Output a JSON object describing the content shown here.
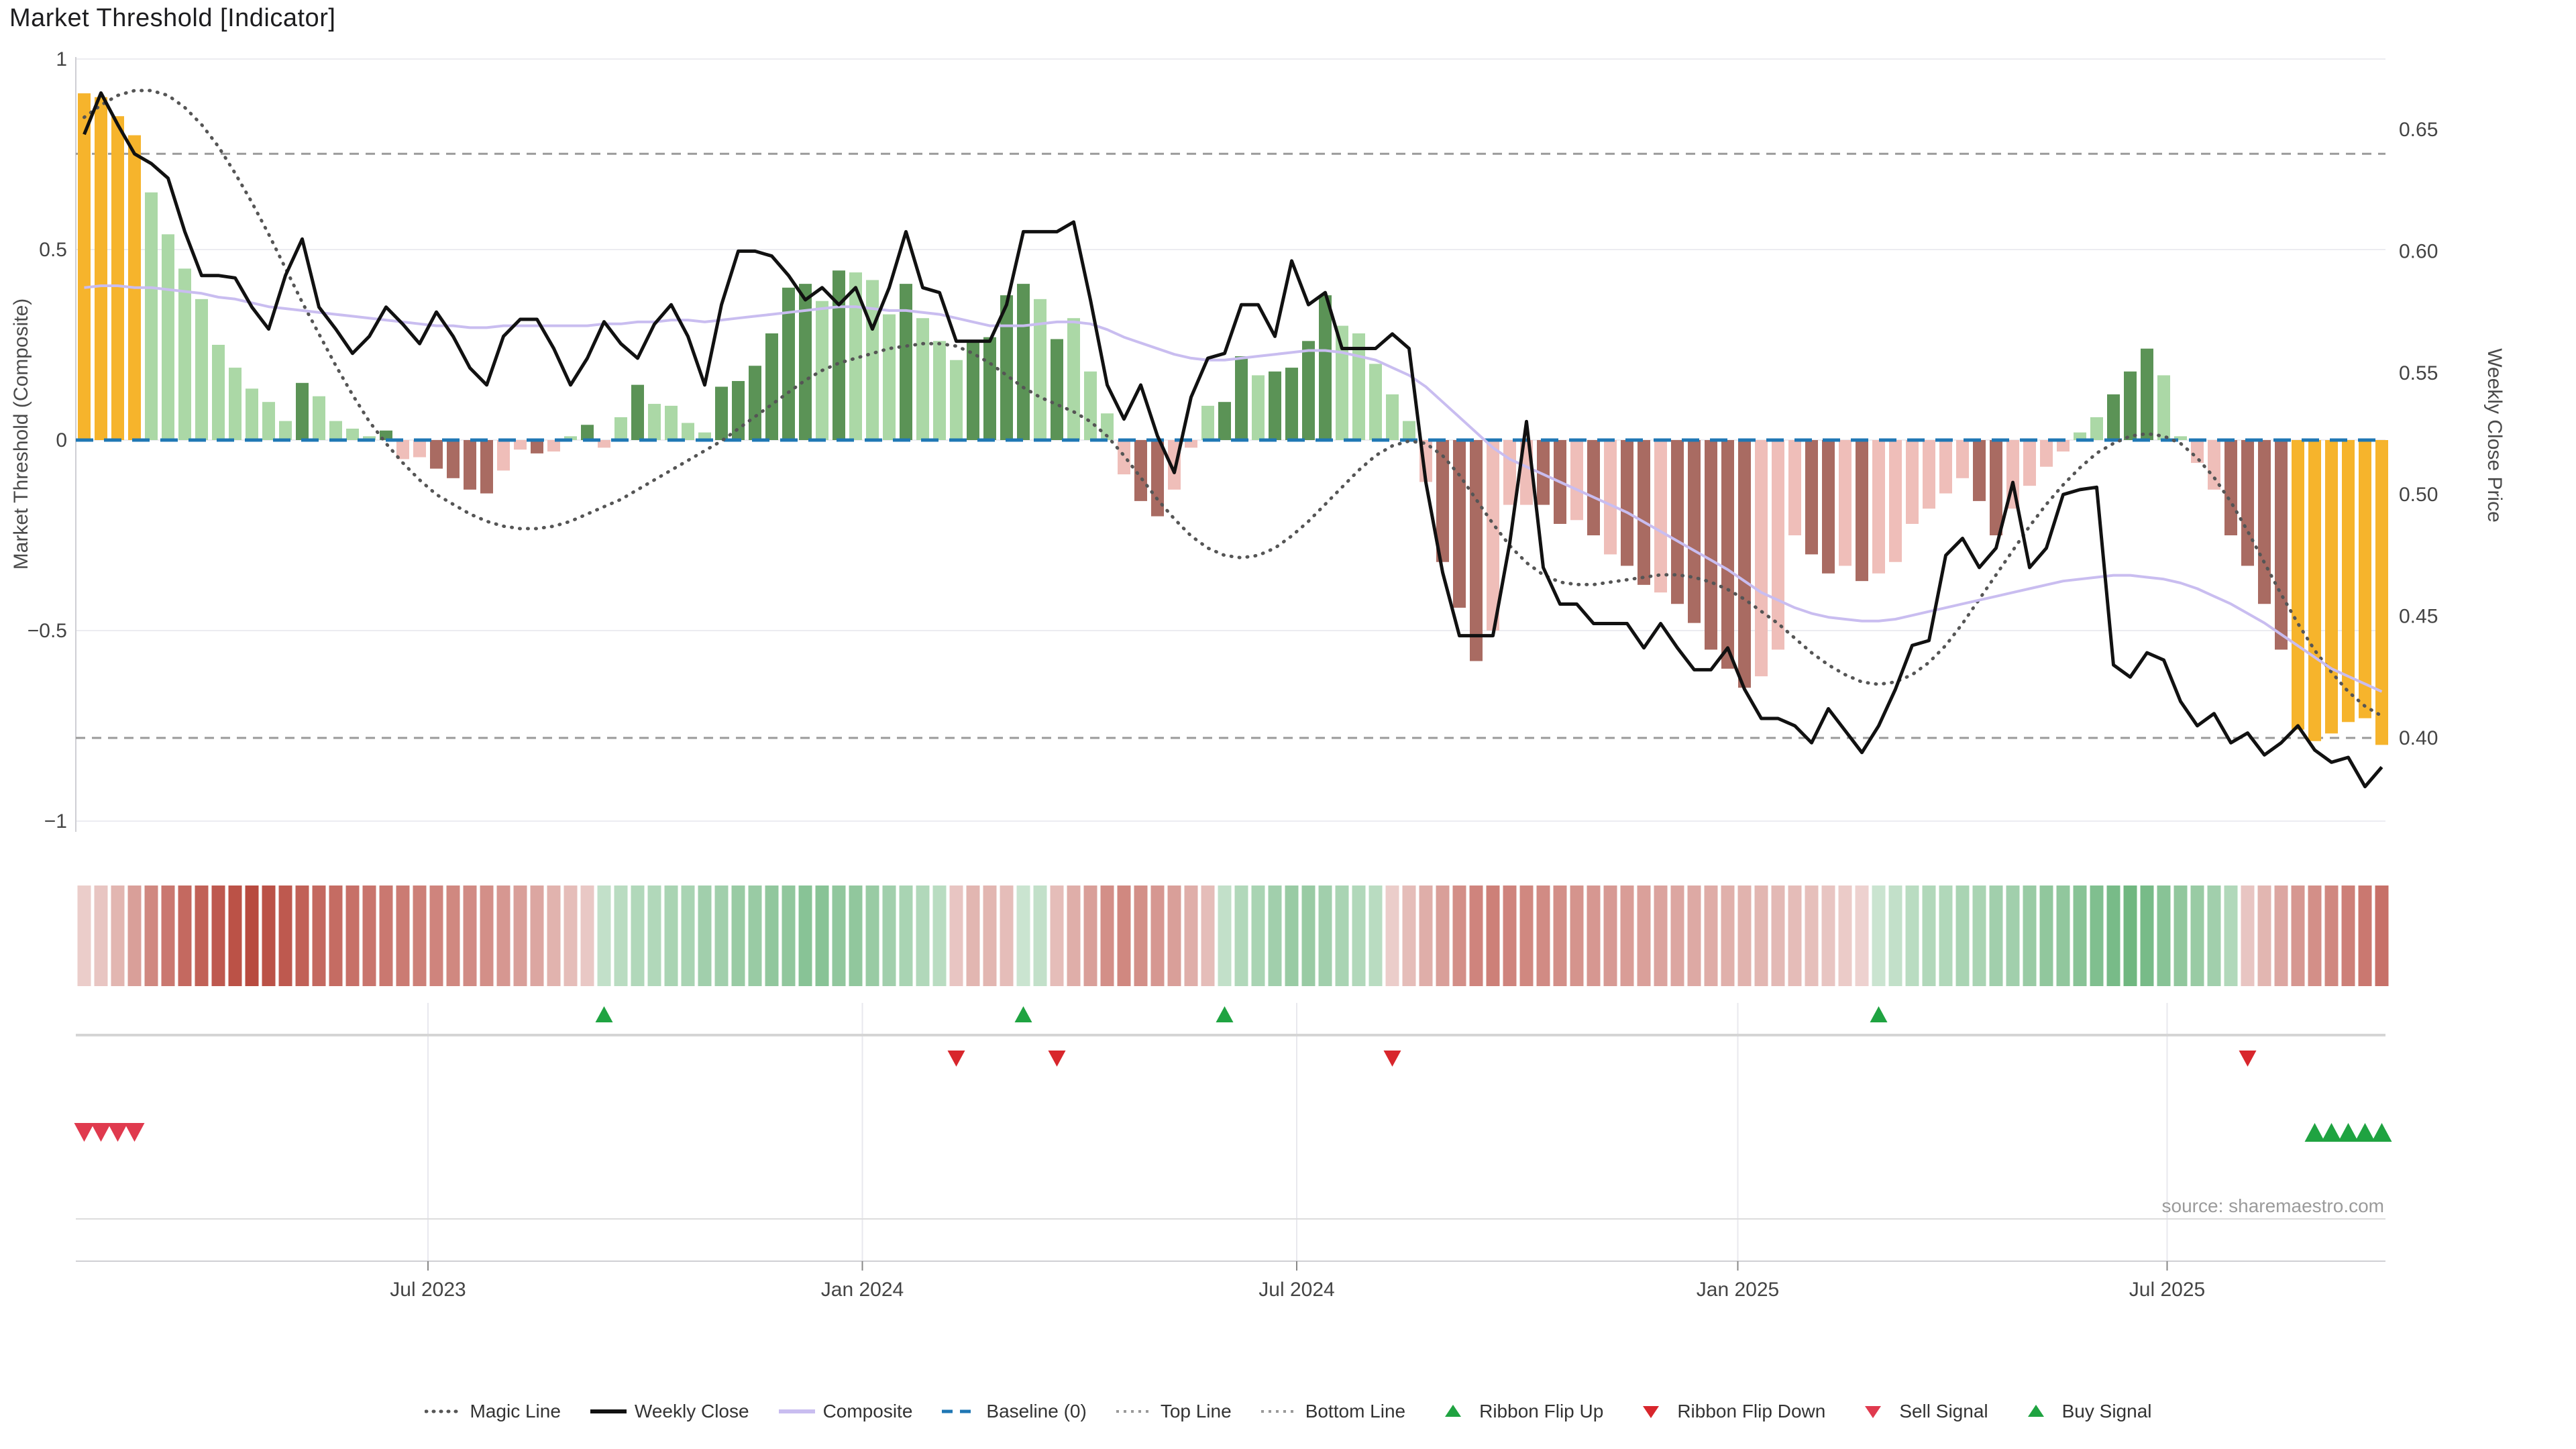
{
  "title": "Market Threshold [Indicator]",
  "source_note": "source: sharemaestro.com",
  "axes": {
    "left_title": "Market Threshold (Composite)",
    "right_title": "Weekly Close Price"
  },
  "legend": {
    "items": [
      {
        "label": "Magic Line",
        "marker": "dotted-line",
        "color": "#555555"
      },
      {
        "label": "Weekly Close",
        "marker": "solid-line",
        "color": "#111111"
      },
      {
        "label": "Composite",
        "marker": "solid-line",
        "color": "#c9bdf0"
      },
      {
        "label": "Baseline (0)",
        "marker": "dashed-line",
        "color": "#1f77b4"
      },
      {
        "label": "Top Line",
        "marker": "fine-dashed-line",
        "color": "#999999"
      },
      {
        "label": "Bottom Line",
        "marker": "fine-dashed-line",
        "color": "#999999"
      },
      {
        "label": "Ribbon Flip Up",
        "marker": "triangle-up",
        "color": "#1fa341"
      },
      {
        "label": "Ribbon Flip Down",
        "marker": "triangle-down",
        "color": "#d8262c"
      },
      {
        "label": "Sell Signal",
        "marker": "triangle-down",
        "color": "#e03a4e"
      },
      {
        "label": "Buy Signal",
        "marker": "triangle-up",
        "color": "#1fa341"
      }
    ]
  },
  "style": {
    "bar_colors": {
      "gold": "#f6b42c",
      "light_green": "#abd8a6",
      "dark_green": "#5b9356",
      "light_red": "#efbeb9",
      "dark_red": "#a96b62"
    },
    "weekly_close_color": "#111111",
    "composite_color": "#c9bdf0",
    "magic_line_color": "#555555",
    "baseline_color": "#1f77b4",
    "threshold_line_color": "#9a9a9a",
    "ribbon_red": "#b84a3f",
    "ribbon_green": "#3f9e55",
    "flip_up_color": "#1fa341",
    "flip_down_color": "#d8262c",
    "sell_color": "#e03a4e",
    "buy_color": "#1fa341",
    "grid_color": "#ececf1",
    "axis_color": "#cfcfd4",
    "tick_text_color": "#444444"
  },
  "chart_data": {
    "type": "bar",
    "description": "Weekly market-threshold composite bars (left axis) with weekly close price, magic line, top/bottom price lines (right axis), color ribbon and trade signals.",
    "n_points": 138,
    "x_axis": {
      "tick_labels": [
        "Jul 2023",
        "Jan 2024",
        "Jul 2024",
        "Jan 2025",
        "Jul 2025"
      ],
      "tick_bar_index": [
        20.5,
        46.4,
        72.3,
        98.6,
        124.2
      ],
      "frequency": "weekly"
    },
    "left_axis": {
      "label": "Market Threshold (Composite)",
      "tick_labels": [
        "1",
        "0.5",
        "0",
        "−0.5",
        "−1"
      ],
      "tick_values": [
        1,
        0.5,
        0,
        -0.5,
        -1
      ],
      "range": [
        -1.03,
        1.01
      ]
    },
    "right_axis": {
      "label": "Weekly Close Price",
      "tick_labels": [
        "0.65",
        "0.60",
        "0.55",
        "0.50",
        "0.45",
        "0.40"
      ],
      "tick_values": [
        0.65,
        0.6,
        0.55,
        0.5,
        0.45,
        0.4
      ],
      "range": [
        0.361,
        0.68
      ]
    },
    "baseline": 0,
    "top_line": 0.64,
    "bottom_line": 0.4,
    "bars": {
      "color_key": {
        "G": "gold",
        "g": "light_green",
        "D": "dark_green",
        "p": "light_red",
        "r": "dark_red"
      },
      "color_codes": "GGGGgggggggggDggggDpprrrrpprpgDpgDggggDDDDDDgDgggDgggDDDDgDgggprrppgDDgDDDDgggggprrrppprrprprrprrrrrppprrprpppppprrppppggDDDggpprrrrGGGGGG",
      "values": [
        0.91,
        0.9,
        0.85,
        0.8,
        0.65,
        0.54,
        0.45,
        0.37,
        0.25,
        0.19,
        0.135,
        0.1,
        0.05,
        0.15,
        0.115,
        0.05,
        0.03,
        0.01,
        0.025,
        -0.05,
        -0.045,
        -0.075,
        -0.1,
        -0.13,
        -0.14,
        -0.08,
        -0.025,
        -0.035,
        -0.03,
        0.01,
        0.04,
        -0.02,
        0.06,
        0.145,
        0.095,
        0.09,
        0.045,
        0.02,
        0.14,
        0.155,
        0.195,
        0.28,
        0.4,
        0.41,
        0.365,
        0.445,
        0.44,
        0.42,
        0.33,
        0.41,
        0.32,
        0.26,
        0.21,
        0.26,
        0.27,
        0.38,
        0.41,
        0.37,
        0.265,
        0.32,
        0.18,
        0.07,
        -0.09,
        -0.16,
        -0.2,
        -0.13,
        -0.02,
        0.09,
        0.1,
        0.22,
        0.17,
        0.18,
        0.19,
        0.26,
        0.38,
        0.3,
        0.28,
        0.2,
        0.12,
        0.05,
        -0.11,
        -0.32,
        -0.44,
        -0.58,
        -0.5,
        -0.17,
        -0.17,
        -0.17,
        -0.22,
        -0.21,
        -0.25,
        -0.3,
        -0.33,
        -0.38,
        -0.4,
        -0.43,
        -0.48,
        -0.55,
        -0.6,
        -0.65,
        -0.62,
        -0.55,
        -0.25,
        -0.3,
        -0.35,
        -0.33,
        -0.37,
        -0.35,
        -0.32,
        -0.22,
        -0.18,
        -0.14,
        -0.1,
        -0.16,
        -0.25,
        -0.18,
        -0.12,
        -0.07,
        -0.03,
        0.02,
        0.06,
        0.12,
        0.18,
        0.24,
        0.17,
        0.01,
        -0.06,
        -0.13,
        -0.25,
        -0.33,
        -0.43,
        -0.55,
        -0.76,
        -0.79,
        -0.77,
        -0.74,
        -0.73,
        -0.8
      ]
    },
    "weekly_close": [
      0.648,
      0.665,
      0.652,
      0.64,
      0.636,
      0.63,
      0.608,
      0.59,
      0.59,
      0.589,
      0.577,
      0.568,
      0.59,
      0.605,
      0.577,
      0.568,
      0.558,
      0.565,
      0.577,
      0.57,
      0.562,
      0.575,
      0.565,
      0.552,
      0.545,
      0.565,
      0.572,
      0.572,
      0.56,
      0.545,
      0.556,
      0.571,
      0.562,
      0.556,
      0.57,
      0.578,
      0.565,
      0.545,
      0.578,
      0.6,
      0.6,
      0.598,
      0.59,
      0.58,
      0.585,
      0.578,
      0.585,
      0.568,
      0.585,
      0.608,
      0.585,
      0.583,
      0.563,
      0.563,
      0.563,
      0.578,
      0.608,
      0.608,
      0.608,
      0.612,
      0.58,
      0.545,
      0.531,
      0.545,
      0.524,
      0.509,
      0.54,
      0.556,
      0.558,
      0.578,
      0.578,
      0.565,
      0.596,
      0.578,
      0.583,
      0.56,
      0.56,
      0.56,
      0.566,
      0.56,
      0.505,
      0.468,
      0.442,
      0.442,
      0.442,
      0.48,
      0.53,
      0.47,
      0.455,
      0.455,
      0.447,
      0.447,
      0.447,
      0.437,
      0.447,
      0.437,
      0.428,
      0.428,
      0.437,
      0.42,
      0.408,
      0.408,
      0.405,
      0.398,
      0.412,
      0.403,
      0.394,
      0.405,
      0.42,
      0.438,
      0.44,
      0.475,
      0.482,
      0.47,
      0.478,
      0.505,
      0.47,
      0.478,
      0.5,
      0.502,
      0.503,
      0.43,
      0.425,
      0.435,
      0.432,
      0.415,
      0.405,
      0.41,
      0.398,
      0.402,
      0.393,
      0.398,
      0.405,
      0.395,
      0.39,
      0.392,
      0.38,
      0.388
    ],
    "composite": [
      0.4,
      0.405,
      0.405,
      0.4,
      0.4,
      0.395,
      0.39,
      0.385,
      0.375,
      0.37,
      0.36,
      0.35,
      0.345,
      0.34,
      0.335,
      0.33,
      0.325,
      0.32,
      0.315,
      0.31,
      0.305,
      0.3,
      0.3,
      0.295,
      0.295,
      0.3,
      0.3,
      0.3,
      0.3,
      0.3,
      0.3,
      0.305,
      0.305,
      0.31,
      0.31,
      0.315,
      0.315,
      0.31,
      0.315,
      0.32,
      0.325,
      0.33,
      0.335,
      0.34,
      0.345,
      0.35,
      0.35,
      0.345,
      0.34,
      0.34,
      0.335,
      0.33,
      0.32,
      0.31,
      0.3,
      0.3,
      0.3,
      0.305,
      0.31,
      0.31,
      0.305,
      0.29,
      0.27,
      0.255,
      0.24,
      0.225,
      0.215,
      0.21,
      0.21,
      0.215,
      0.22,
      0.225,
      0.23,
      0.235,
      0.235,
      0.23,
      0.22,
      0.21,
      0.19,
      0.17,
      0.14,
      0.1,
      0.06,
      0.02,
      -0.02,
      -0.05,
      -0.07,
      -0.09,
      -0.11,
      -0.13,
      -0.15,
      -0.17,
      -0.19,
      -0.215,
      -0.24,
      -0.265,
      -0.29,
      -0.315,
      -0.34,
      -0.37,
      -0.4,
      -0.42,
      -0.44,
      -0.455,
      -0.465,
      -0.47,
      -0.475,
      -0.475,
      -0.47,
      -0.46,
      -0.45,
      -0.44,
      -0.43,
      -0.42,
      -0.41,
      -0.4,
      -0.39,
      -0.38,
      -0.37,
      -0.365,
      -0.36,
      -0.355,
      -0.355,
      -0.36,
      -0.365,
      -0.375,
      -0.39,
      -0.41,
      -0.43,
      -0.455,
      -0.48,
      -0.51,
      -0.54,
      -0.57,
      -0.6,
      -0.62,
      -0.64,
      -0.66
    ],
    "magic_line": [
      0.655,
      0.66,
      0.664,
      0.666,
      0.666,
      0.664,
      0.659,
      0.652,
      0.643,
      0.632,
      0.62,
      0.607,
      0.593,
      0.579,
      0.566,
      0.553,
      0.541,
      0.53,
      0.521,
      0.513,
      0.506,
      0.5,
      0.496,
      0.492,
      0.489,
      0.487,
      0.486,
      0.486,
      0.487,
      0.489,
      0.492,
      0.495,
      0.498,
      0.502,
      0.506,
      0.51,
      0.514,
      0.518,
      0.522,
      0.527,
      0.532,
      0.537,
      0.542,
      0.547,
      0.551,
      0.554,
      0.556,
      0.558,
      0.56,
      0.561,
      0.562,
      0.562,
      0.561,
      0.558,
      0.554,
      0.549,
      0.544,
      0.54,
      0.537,
      0.534,
      0.53,
      0.524,
      0.516,
      0.507,
      0.498,
      0.49,
      0.483,
      0.478,
      0.475,
      0.474,
      0.475,
      0.478,
      0.483,
      0.489,
      0.496,
      0.503,
      0.51,
      0.516,
      0.52,
      0.522,
      0.521,
      0.516,
      0.508,
      0.498,
      0.488,
      0.479,
      0.472,
      0.467,
      0.464,
      0.463,
      0.463,
      0.464,
      0.465,
      0.466,
      0.467,
      0.467,
      0.466,
      0.464,
      0.461,
      0.457,
      0.452,
      0.447,
      0.441,
      0.435,
      0.43,
      0.426,
      0.423,
      0.422,
      0.423,
      0.426,
      0.431,
      0.438,
      0.447,
      0.457,
      0.467,
      0.477,
      0.487,
      0.496,
      0.504,
      0.511,
      0.517,
      0.521,
      0.524,
      0.525,
      0.524,
      0.521,
      0.515,
      0.507,
      0.497,
      0.485,
      0.472,
      0.459,
      0.447,
      0.436,
      0.427,
      0.419,
      0.413,
      0.409
    ],
    "ribbon": [
      -0.15,
      -0.2,
      -0.3,
      -0.45,
      -0.6,
      -0.7,
      -0.8,
      -0.85,
      -0.9,
      -0.95,
      -1,
      -0.95,
      -0.9,
      -0.85,
      -0.8,
      -0.78,
      -0.75,
      -0.72,
      -0.7,
      -0.68,
      -0.65,
      -0.62,
      -0.6,
      -0.58,
      -0.55,
      -0.5,
      -0.45,
      -0.4,
      -0.32,
      -0.25,
      -0.18,
      0.2,
      0.25,
      0.3,
      0.3,
      0.35,
      0.35,
      0.4,
      0.4,
      0.45,
      0.45,
      0.5,
      0.5,
      0.55,
      0.55,
      0.5,
      0.5,
      0.45,
      0.4,
      0.35,
      0.3,
      0.25,
      -0.2,
      -0.3,
      -0.3,
      -0.25,
      0.15,
      0.2,
      -0.25,
      -0.35,
      -0.45,
      -0.55,
      -0.6,
      -0.55,
      -0.5,
      -0.45,
      -0.35,
      -0.25,
      0.2,
      0.3,
      0.35,
      0.4,
      0.45,
      0.45,
      0.4,
      0.35,
      0.3,
      0.25,
      -0.15,
      -0.25,
      -0.35,
      -0.45,
      -0.55,
      -0.62,
      -0.65,
      -0.62,
      -0.6,
      -0.58,
      -0.55,
      -0.52,
      -0.5,
      -0.48,
      -0.46,
      -0.44,
      -0.42,
      -0.4,
      -0.38,
      -0.36,
      -0.34,
      -0.32,
      -0.3,
      -0.28,
      -0.26,
      -0.24,
      -0.2,
      -0.16,
      -0.12,
      0.15,
      0.2,
      0.25,
      0.3,
      0.3,
      0.35,
      0.35,
      0.4,
      0.4,
      0.45,
      0.5,
      0.5,
      0.55,
      0.6,
      0.65,
      0.7,
      0.65,
      0.55,
      0.5,
      0.45,
      0.4,
      0.3,
      -0.2,
      -0.3,
      -0.4,
      -0.5,
      -0.55,
      -0.6,
      -0.65,
      -0.7,
      -0.75
    ],
    "signals": {
      "flip_up_idx": [
        31,
        56,
        68,
        107
      ],
      "flip_down_idx": [
        52,
        58,
        78,
        129
      ],
      "sell_idx": [
        0,
        1,
        2,
        3
      ],
      "buy_idx": [
        133,
        134,
        135,
        136,
        137
      ]
    }
  }
}
